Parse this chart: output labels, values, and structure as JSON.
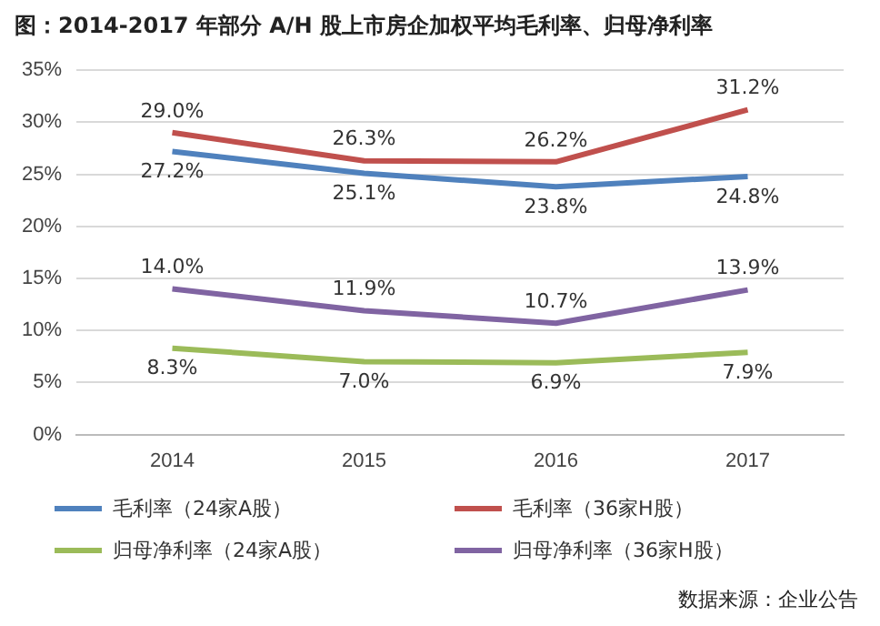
{
  "chart_data": {
    "type": "line",
    "title": "图：2014-2017 年部分 A/H 股上市房企加权平均毛利率、归母净利率",
    "categories": [
      "2014",
      "2015",
      "2016",
      "2017"
    ],
    "series": [
      {
        "name": "毛利率（24家A股）",
        "color": "#4f81bd",
        "values": [
          27.2,
          25.1,
          23.8,
          24.8
        ],
        "value_labels": [
          "27.2%",
          "25.1%",
          "23.8%",
          "24.8%"
        ]
      },
      {
        "name": "毛利率（36家H股）",
        "color": "#c0504d",
        "values": [
          29.0,
          26.3,
          26.2,
          31.2
        ],
        "value_labels": [
          "29.0%",
          "26.3%",
          "26.2%",
          "31.2%"
        ]
      },
      {
        "name": "归母净利率（24家A股）",
        "color": "#9bbb59",
        "values": [
          8.3,
          7.0,
          6.9,
          7.9
        ],
        "value_labels": [
          "8.3%",
          "7.0%",
          "6.9%",
          "7.9%"
        ]
      },
      {
        "name": "归母净利率（36家H股）",
        "color": "#8064a2",
        "values": [
          14.0,
          11.9,
          10.7,
          13.9
        ],
        "value_labels": [
          "14.0%",
          "11.9%",
          "10.7%",
          "13.9%"
        ]
      }
    ],
    "ylim": [
      0,
      35
    ],
    "yticks": [
      {
        "value": 0,
        "label": "0%"
      },
      {
        "value": 5,
        "label": "5%"
      },
      {
        "value": 10,
        "label": "10%"
      },
      {
        "value": 15,
        "label": "15%"
      },
      {
        "value": 20,
        "label": "20%"
      },
      {
        "value": 25,
        "label": "25%"
      },
      {
        "value": 30,
        "label": "30%"
      },
      {
        "value": 35,
        "label": "35%"
      }
    ],
    "grid": "y",
    "legend": "bottom",
    "marker": "none",
    "line_style": "solid",
    "annotations": [
      "数据来源：企业公告"
    ]
  }
}
